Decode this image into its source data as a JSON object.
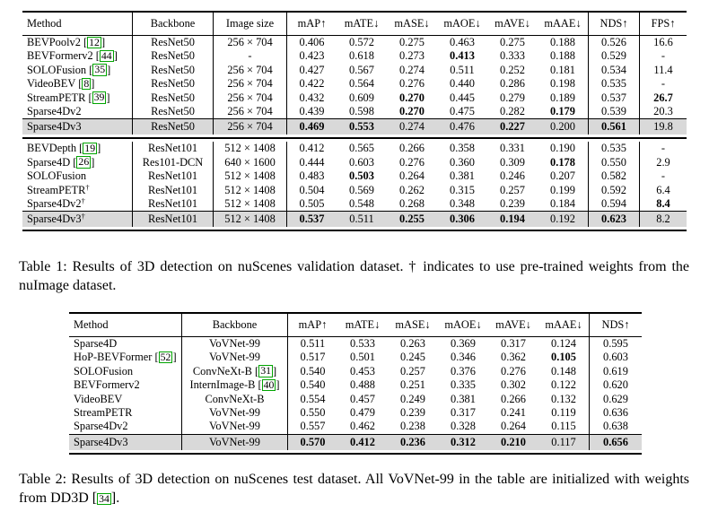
{
  "colors": {
    "highlight_row": "#d9d9d9",
    "citation_box": "#00a400",
    "rule": "#000000",
    "text": "#000000"
  },
  "tables": [
    {
      "id": "t1",
      "name": "results-3d-detection-nuscenes-validation",
      "columns": [
        "Method",
        "Backbone",
        "Image size",
        "mAP↑",
        "mATE↓",
        "mASE↓",
        "mAOE↓",
        "mAVE↓",
        "mAAE↓",
        "NDS↑",
        "FPS↑"
      ],
      "sections": [
        {
          "rows": [
            {
              "method": "BEVPoolv2",
              "cite": "12",
              "backbone": "ResNet50",
              "size": "256 × 704",
              "vals": [
                "0.406",
                "0.572",
                "0.275",
                "0.463",
                "0.275",
                "0.188",
                "0.526",
                "16.6"
              ],
              "bold": []
            },
            {
              "method": "BEVFormerv2",
              "cite": "44",
              "backbone": "ResNet50",
              "size": "-",
              "vals": [
                "0.423",
                "0.618",
                "0.273",
                "0.413",
                "0.333",
                "0.188",
                "0.529",
                "-"
              ],
              "bold": [
                3
              ]
            },
            {
              "method": "SOLOFusion",
              "cite": "35",
              "backbone": "ResNet50",
              "size": "256 × 704",
              "vals": [
                "0.427",
                "0.567",
                "0.274",
                "0.511",
                "0.252",
                "0.181",
                "0.534",
                "11.4"
              ],
              "bold": []
            },
            {
              "method": "VideoBEV",
              "cite": "8",
              "backbone": "ResNet50",
              "size": "256 × 704",
              "vals": [
                "0.422",
                "0.564",
                "0.276",
                "0.440",
                "0.286",
                "0.198",
                "0.535",
                "-"
              ],
              "bold": []
            },
            {
              "method": "StreamPETR",
              "cite": "39",
              "backbone": "ResNet50",
              "size": "256 × 704",
              "vals": [
                "0.432",
                "0.609",
                "0.270",
                "0.445",
                "0.279",
                "0.189",
                "0.537",
                "26.7"
              ],
              "bold": [
                2,
                7
              ]
            },
            {
              "method": "Sparse4Dv2",
              "backbone": "ResNet50",
              "size": "256 × 704",
              "vals": [
                "0.439",
                "0.598",
                "0.270",
                "0.475",
                "0.282",
                "0.179",
                "0.539",
                "20.3"
              ],
              "bold": [
                2,
                5
              ]
            },
            {
              "method": "Sparse4Dv3",
              "backbone": "ResNet50",
              "size": "256 × 704",
              "vals": [
                "0.469",
                "0.553",
                "0.274",
                "0.476",
                "0.227",
                "0.200",
                "0.561",
                "19.8"
              ],
              "bold": [
                0,
                1,
                4,
                6
              ],
              "highlight": true
            }
          ]
        },
        {
          "rows": [
            {
              "method": "BEVDepth",
              "cite": "19",
              "backbone": "ResNet101",
              "size": "512 × 1408",
              "vals": [
                "0.412",
                "0.565",
                "0.266",
                "0.358",
                "0.331",
                "0.190",
                "0.535",
                "-"
              ],
              "bold": []
            },
            {
              "method": "Sparse4D",
              "cite": "26",
              "backbone": "Res101-DCN",
              "size": "640 × 1600",
              "vals": [
                "0.444",
                "0.603",
                "0.276",
                "0.360",
                "0.309",
                "0.178",
                "0.550",
                "2.9"
              ],
              "bold": [
                5
              ]
            },
            {
              "method": "SOLOFusion",
              "backbone": "ResNet101",
              "size": "512 × 1408",
              "vals": [
                "0.483",
                "0.503",
                "0.264",
                "0.381",
                "0.246",
                "0.207",
                "0.582",
                "-"
              ],
              "bold": [
                1
              ]
            },
            {
              "method": "StreamPETR",
              "dagger": true,
              "backbone": "ResNet101",
              "size": "512 × 1408",
              "vals": [
                "0.504",
                "0.569",
                "0.262",
                "0.315",
                "0.257",
                "0.199",
                "0.592",
                "6.4"
              ],
              "bold": []
            },
            {
              "method": "Sparse4Dv2",
              "dagger": true,
              "backbone": "ResNet101",
              "size": "512 × 1408",
              "vals": [
                "0.505",
                "0.548",
                "0.268",
                "0.348",
                "0.239",
                "0.184",
                "0.594",
                "8.4"
              ],
              "bold": [
                7
              ]
            },
            {
              "method": "Sparse4Dv3",
              "dagger": true,
              "backbone": "ResNet101",
              "size": "512 × 1408",
              "vals": [
                "0.537",
                "0.511",
                "0.255",
                "0.306",
                "0.194",
                "0.192",
                "0.623",
                "8.2"
              ],
              "bold": [
                0,
                2,
                3,
                4,
                6
              ],
              "highlight": true
            }
          ]
        }
      ],
      "caption_parts": [
        {
          "t": "Table 1: Results of 3D detection on nuScenes validation dataset. † indicates to use pre-trained weights from the nuImage dataset."
        }
      ]
    },
    {
      "id": "t2",
      "name": "results-3d-detection-nuscenes-test",
      "columns": [
        "Method",
        "Backbone",
        "mAP↑",
        "mATE↓",
        "mASE↓",
        "mAOE↓",
        "mAVE↓",
        "mAAE↓",
        "NDS↑"
      ],
      "sections": [
        {
          "rows": [
            {
              "method": "Sparse4D",
              "backbone": "VoVNet-99",
              "vals": [
                "0.511",
                "0.533",
                "0.263",
                "0.369",
                "0.317",
                "0.124",
                "0.595"
              ],
              "bold": []
            },
            {
              "method": "HoP-BEVFormer",
              "cite": "52",
              "backbone": "VoVNet-99",
              "vals": [
                "0.517",
                "0.501",
                "0.245",
                "0.346",
                "0.362",
                "0.105",
                "0.603"
              ],
              "bold": [
                5
              ]
            },
            {
              "method": "SOLOFusion",
              "backbone": "ConvNeXt-B",
              "backbone_cite": "31",
              "vals": [
                "0.540",
                "0.453",
                "0.257",
                "0.376",
                "0.276",
                "0.148",
                "0.619"
              ],
              "bold": []
            },
            {
              "method": "BEVFormerv2",
              "backbone": "InternImage-B",
              "backbone_cite": "40",
              "vals": [
                "0.540",
                "0.488",
                "0.251",
                "0.335",
                "0.302",
                "0.122",
                "0.620"
              ],
              "bold": []
            },
            {
              "method": "VideoBEV",
              "backbone": "ConvNeXt-B",
              "vals": [
                "0.554",
                "0.457",
                "0.249",
                "0.381",
                "0.266",
                "0.132",
                "0.629"
              ],
              "bold": []
            },
            {
              "method": "StreamPETR",
              "backbone": "VoVNet-99",
              "vals": [
                "0.550",
                "0.479",
                "0.239",
                "0.317",
                "0.241",
                "0.119",
                "0.636"
              ],
              "bold": []
            },
            {
              "method": "Sparse4Dv2",
              "backbone": "VoVNet-99",
              "vals": [
                "0.557",
                "0.462",
                "0.238",
                "0.328",
                "0.264",
                "0.115",
                "0.638"
              ],
              "bold": []
            },
            {
              "method": "Sparse4Dv3",
              "backbone": "VoVNet-99",
              "vals": [
                "0.570",
                "0.412",
                "0.236",
                "0.312",
                "0.210",
                "0.117",
                "0.656"
              ],
              "bold": [
                0,
                1,
                2,
                3,
                4,
                6
              ],
              "highlight": true
            }
          ]
        }
      ],
      "caption_parts": [
        {
          "t": "Table 2: Results of 3D detection on nuScenes test dataset. All VoVNet-99 in the table are initialized with weights from DD3D "
        },
        {
          "cite": "34"
        },
        {
          "t": "."
        }
      ]
    }
  ]
}
